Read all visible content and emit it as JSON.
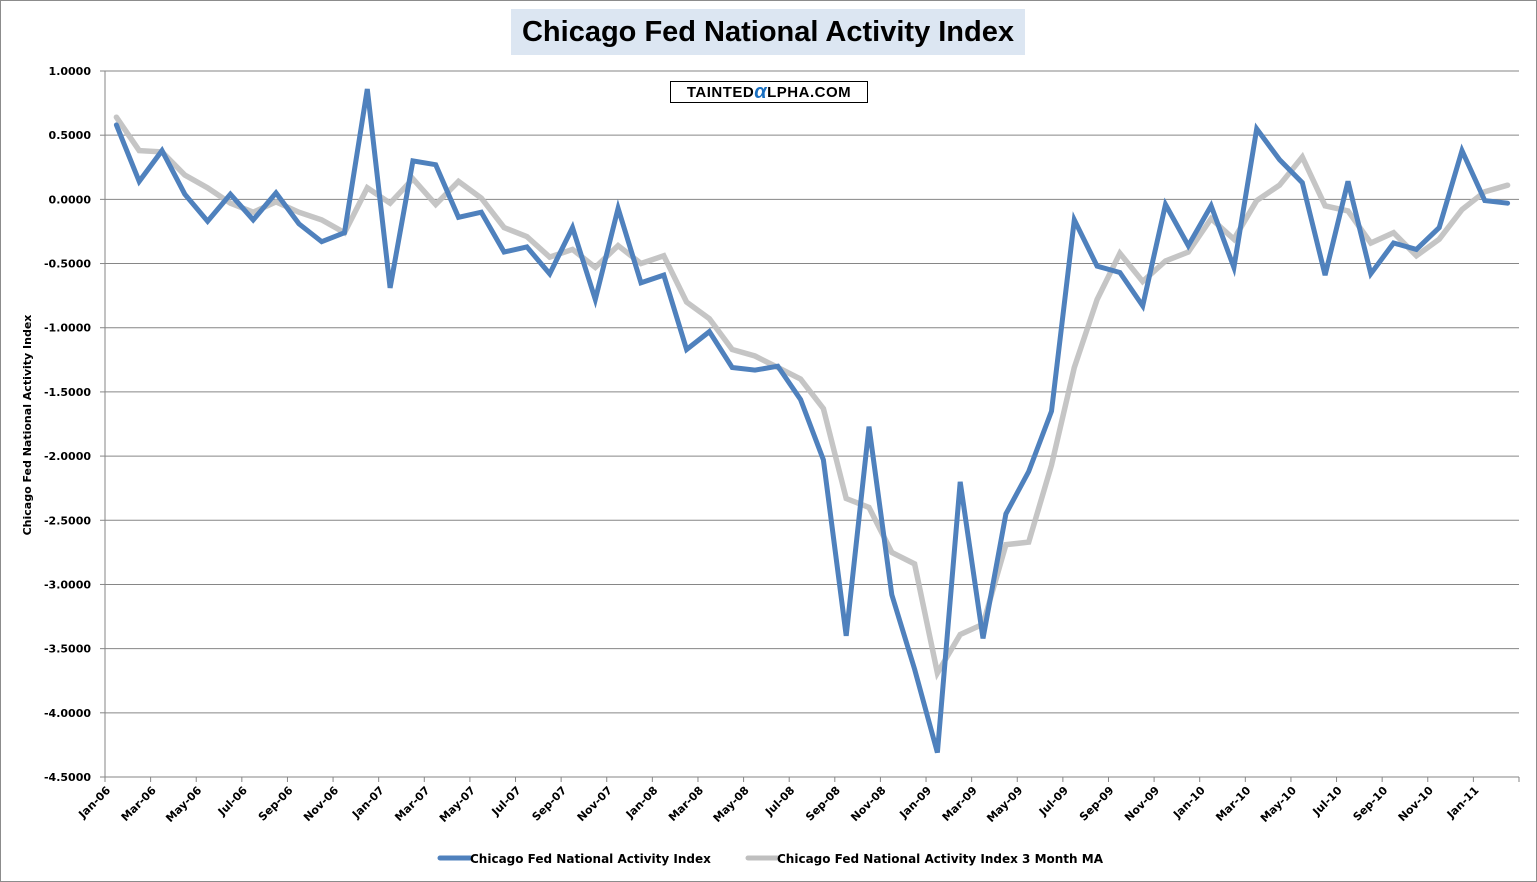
{
  "chart_data": {
    "type": "line",
    "title": "Chicago Fed National Activity Index",
    "watermark": "TaintedAlpha.com",
    "watermark_parts": {
      "pre": "TAINTED",
      "alpha": "α",
      "post": "LPHA.COM"
    },
    "ylabel": "Chicago Fed National Activity Index",
    "xlabel": "",
    "ylim": [
      -4.5,
      1.0
    ],
    "yticks": [
      "1.0000",
      "0.5000",
      "0.0000",
      "-0.5000",
      "-1.0000",
      "-1.5000",
      "-2.0000",
      "-2.5000",
      "-3.0000",
      "-3.5000",
      "-4.0000",
      "-4.5000"
    ],
    "ytick_values": [
      1.0,
      0.5,
      0.0,
      -0.5,
      -1.0,
      -1.5,
      -2.0,
      -2.5,
      -3.0,
      -3.5,
      -4.0,
      -4.5
    ],
    "xtick_labels": [
      "Jan-06",
      "Mar-06",
      "May-06",
      "Jul-06",
      "Sep-06",
      "Nov-06",
      "Jan-07",
      "Mar-07",
      "May-07",
      "Jul-07",
      "Sep-07",
      "Nov-07",
      "Jan-08",
      "Mar-08",
      "May-08",
      "Jul-08",
      "Sep-08",
      "Nov-08",
      "Jan-09",
      "Mar-09",
      "May-09",
      "Jul-09",
      "Sep-09",
      "Nov-09",
      "Jan-10",
      "Mar-10",
      "May-10",
      "Jul-10",
      "Sep-10",
      "Nov-10",
      "Jan-11"
    ],
    "x": [
      "Jan-06",
      "Feb-06",
      "Mar-06",
      "Apr-06",
      "May-06",
      "Jun-06",
      "Jul-06",
      "Aug-06",
      "Sep-06",
      "Oct-06",
      "Nov-06",
      "Dec-06",
      "Jan-07",
      "Feb-07",
      "Mar-07",
      "Apr-07",
      "May-07",
      "Jun-07",
      "Jul-07",
      "Aug-07",
      "Sep-07",
      "Oct-07",
      "Nov-07",
      "Dec-07",
      "Jan-08",
      "Feb-08",
      "Mar-08",
      "Apr-08",
      "May-08",
      "Jun-08",
      "Jul-08",
      "Aug-08",
      "Sep-08",
      "Oct-08",
      "Nov-08",
      "Dec-08",
      "Jan-09",
      "Feb-09",
      "Mar-09",
      "Apr-09",
      "May-09",
      "Jun-09",
      "Jul-09",
      "Aug-09",
      "Sep-09",
      "Oct-09",
      "Nov-09",
      "Dec-09",
      "Jan-10",
      "Feb-10",
      "Mar-10",
      "Apr-10",
      "May-10",
      "Jun-10",
      "Jul-10",
      "Aug-10",
      "Sep-10",
      "Oct-10",
      "Nov-10",
      "Dec-10",
      "Jan-11",
      "Feb-11"
    ],
    "grid": true,
    "legend_position": "bottom",
    "series": [
      {
        "name": "Chicago Fed National Activity Index",
        "color": "#4f81bd",
        "values": [
          0.58,
          0.14,
          0.38,
          0.04,
          -0.17,
          0.04,
          -0.16,
          0.05,
          -0.19,
          -0.33,
          -0.26,
          0.86,
          -0.69,
          0.3,
          0.27,
          -0.14,
          -0.1,
          -0.41,
          -0.37,
          -0.58,
          -0.22,
          -0.78,
          -0.07,
          -0.65,
          -0.59,
          -1.17,
          -1.03,
          -1.31,
          -1.33,
          -1.3,
          -1.56,
          -2.03,
          -3.4,
          -1.77,
          -3.08,
          -3.66,
          -4.31,
          -2.2,
          -3.42,
          -2.45,
          -2.12,
          -1.65,
          -0.16,
          -0.52,
          -0.57,
          -0.83,
          -0.04,
          -0.36,
          -0.05,
          -0.53,
          0.55,
          0.31,
          0.13,
          -0.59,
          0.14,
          -0.58,
          -0.34,
          -0.39,
          -0.22,
          0.38,
          -0.01,
          -0.03
        ]
      },
      {
        "name": "Chicago Fed National Activity Index 3 Month MA",
        "color": "#bfbfbf",
        "values": [
          0.64,
          0.38,
          0.37,
          0.19,
          0.09,
          -0.03,
          -0.1,
          -0.02,
          -0.1,
          -0.16,
          -0.26,
          0.09,
          -0.03,
          0.16,
          -0.04,
          0.14,
          0.01,
          -0.22,
          -0.29,
          -0.45,
          -0.39,
          -0.53,
          -0.36,
          -0.5,
          -0.44,
          -0.8,
          -0.93,
          -1.17,
          -1.22,
          -1.31,
          -1.4,
          -1.63,
          -2.33,
          -2.4,
          -2.75,
          -2.84,
          -3.69,
          -3.39,
          -3.31,
          -2.69,
          -2.67,
          -2.07,
          -1.31,
          -0.78,
          -0.42,
          -0.64,
          -0.48,
          -0.41,
          -0.15,
          -0.31,
          -0.01,
          0.11,
          0.33,
          -0.05,
          -0.09,
          -0.34,
          -0.26,
          -0.44,
          -0.31,
          -0.08,
          0.06,
          0.11
        ]
      }
    ]
  }
}
